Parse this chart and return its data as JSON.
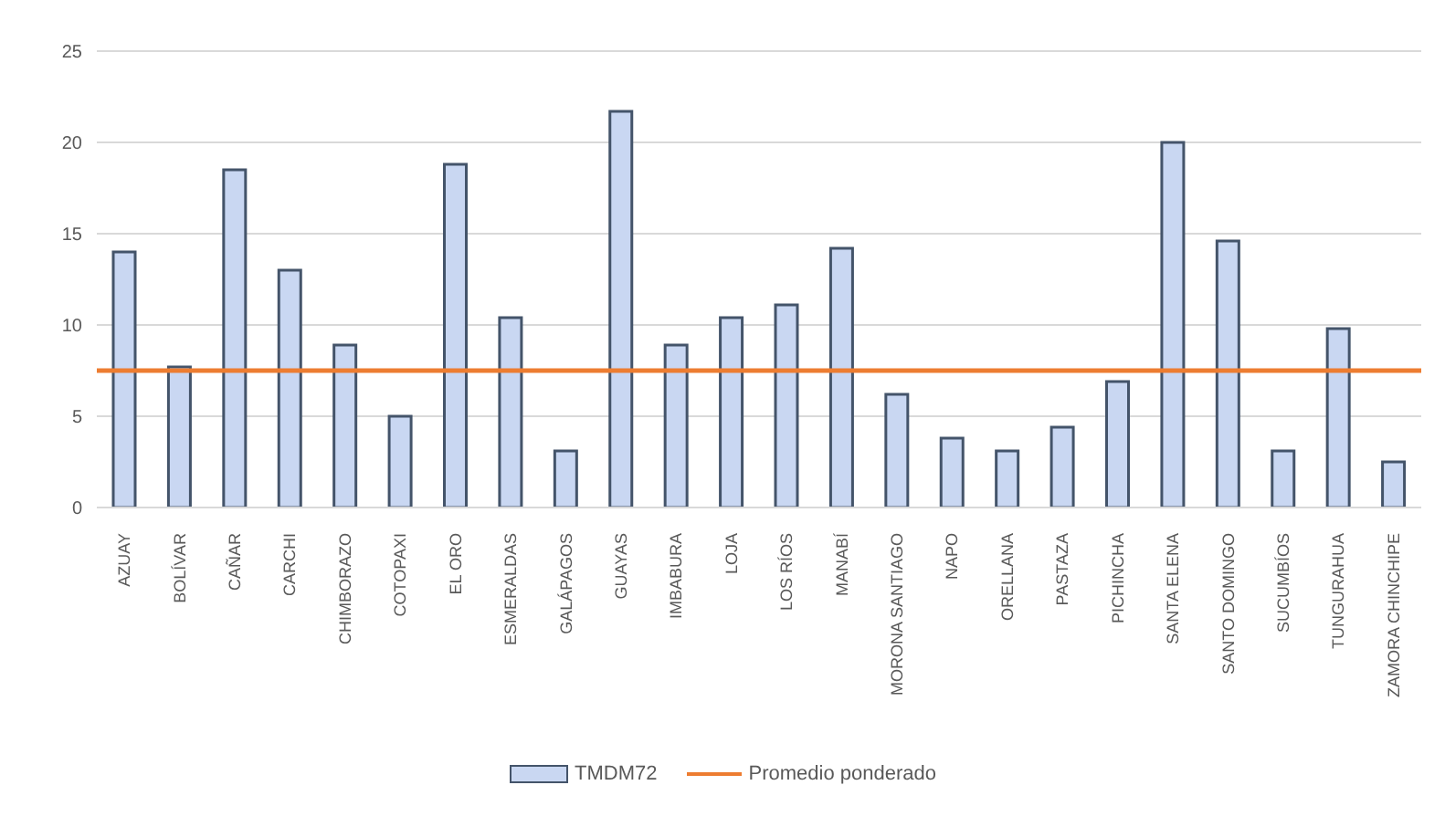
{
  "chart_data": {
    "type": "bar",
    "categories": [
      "AZUAY",
      "BOLÍVAR",
      "CAÑAR",
      "CARCHI",
      "CHIMBORAZO",
      "COTOPAXI",
      "EL ORO",
      "ESMERALDAS",
      "GALÁPAGOS",
      "GUAYAS",
      "IMBABURA",
      "LOJA",
      "LOS RÍOS",
      "MANABÍ",
      "MORONA SANTIAGO",
      "NAPO",
      "ORELLANA",
      "PASTAZA",
      "PICHINCHA",
      "SANTA ELENA",
      "SANTO DOMINGO",
      "SUCUMBÍOS",
      "TUNGURAHUA",
      "ZAMORA CHINCHIPE"
    ],
    "series": [
      {
        "name": "TMDM72",
        "color": "#c9d7f2",
        "values": [
          14.0,
          7.7,
          18.5,
          13.0,
          8.9,
          5.0,
          18.8,
          10.4,
          3.1,
          21.7,
          8.9,
          10.4,
          11.1,
          14.2,
          6.2,
          3.8,
          3.1,
          4.4,
          6.9,
          20.0,
          14.6,
          3.1,
          9.8,
          2.5
        ]
      }
    ],
    "ref_lines": [
      {
        "axis": "y",
        "value": 7.5,
        "label": "Promedio ponderado",
        "color": "#ed7d31"
      }
    ],
    "ylim": [
      0,
      25
    ],
    "yticks": [
      0,
      5,
      10,
      15,
      20,
      25
    ],
    "grid": "y",
    "legend": "bottom"
  }
}
